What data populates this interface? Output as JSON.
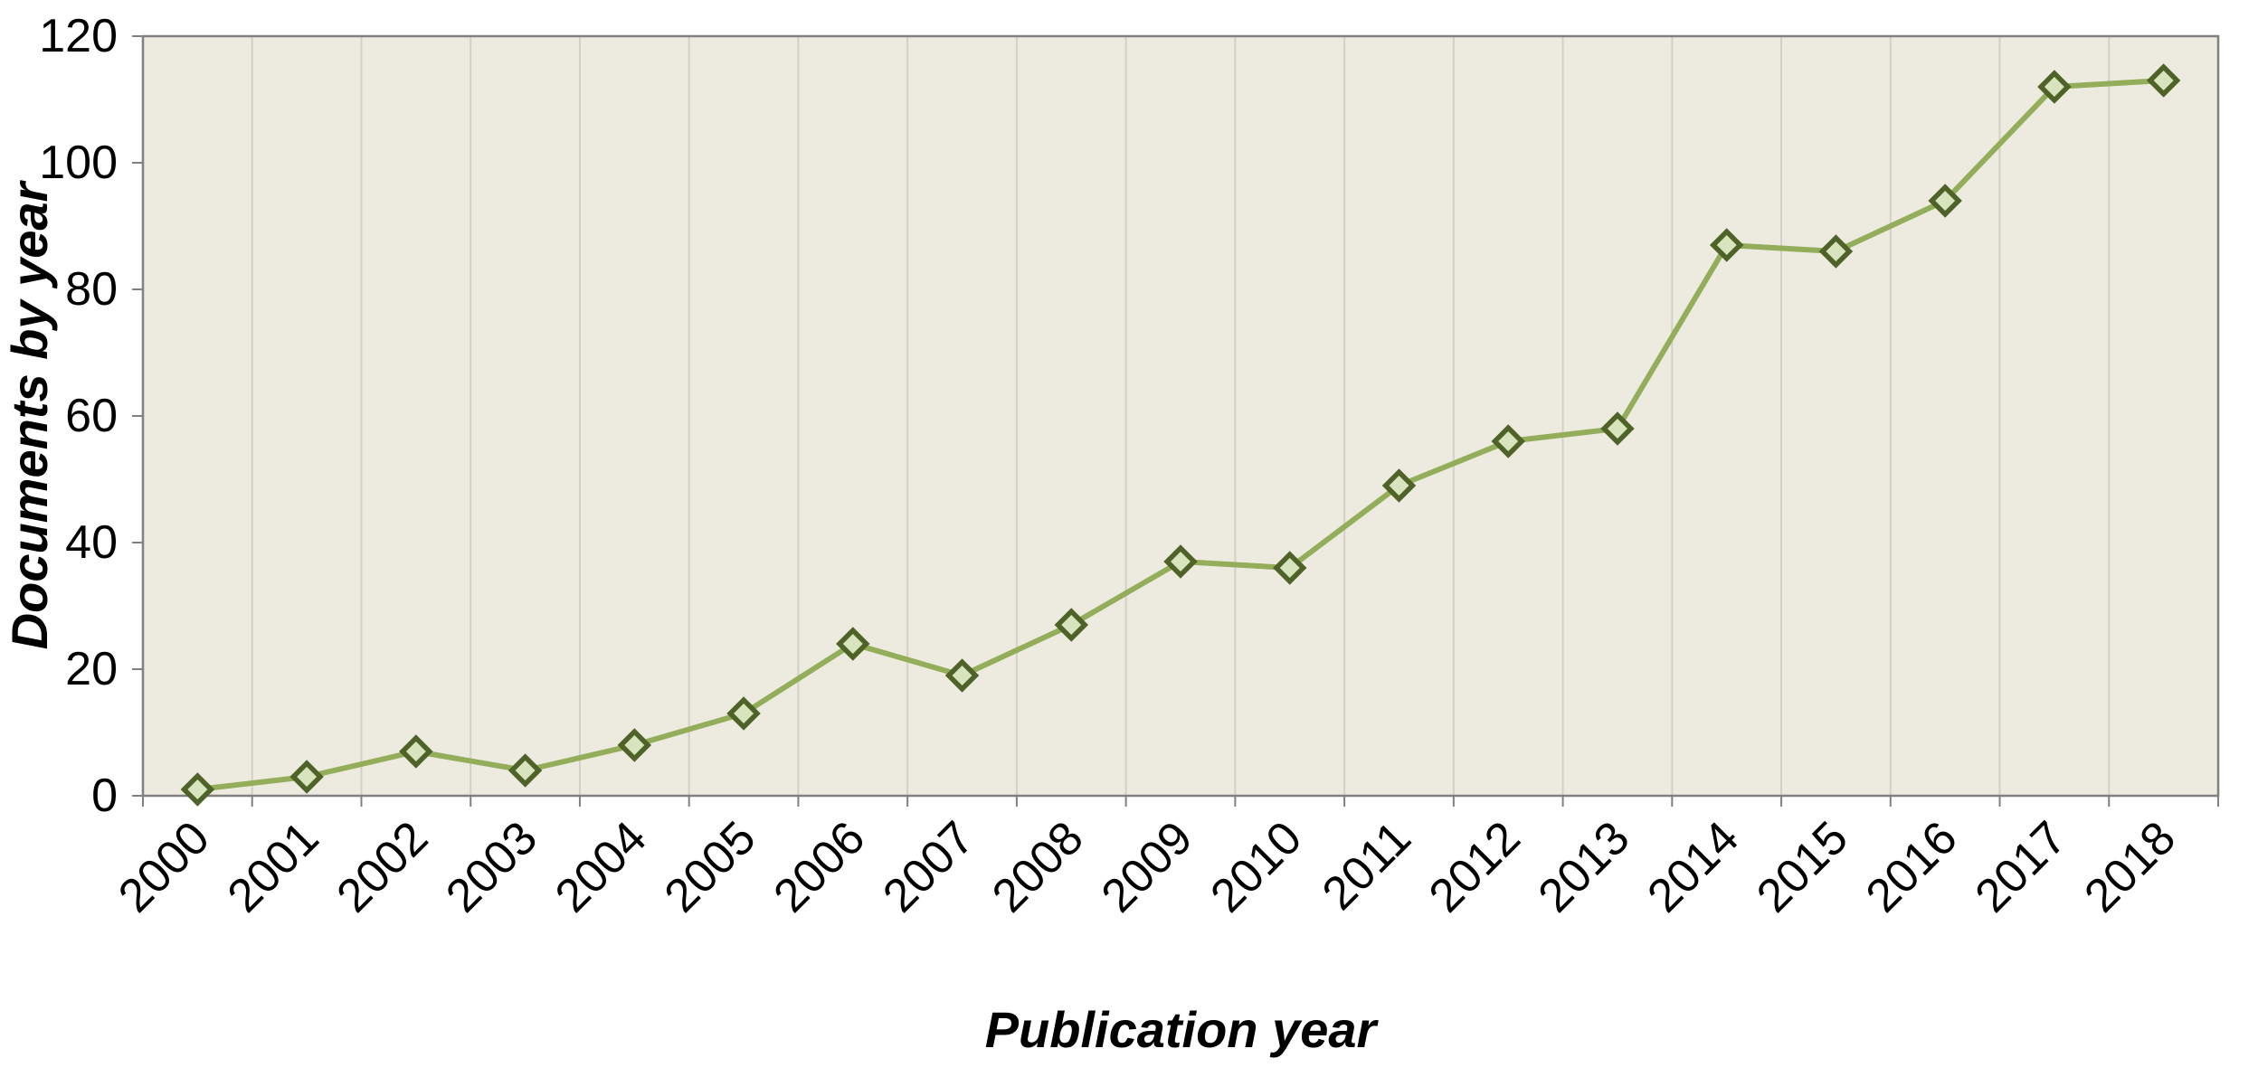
{
  "chart_data": {
    "type": "line",
    "categories": [
      "2000",
      "2001",
      "2002",
      "2003",
      "2004",
      "2005",
      "2006",
      "2007",
      "2008",
      "2009",
      "2010",
      "2011",
      "2012",
      "2013",
      "2014",
      "2015",
      "2016",
      "2017",
      "2018"
    ],
    "series": [
      {
        "name": "Documents by year",
        "values": [
          1,
          3,
          7,
          4,
          8,
          13,
          24,
          19,
          27,
          37,
          36,
          49,
          56,
          58,
          87,
          86,
          94,
          112,
          113
        ]
      }
    ],
    "title": "",
    "xlabel": "Publication year",
    "ylabel": "Documents by year",
    "ylim": [
      0,
      120
    ],
    "ytick_step": 20,
    "yticks": [
      0,
      20,
      40,
      60,
      80,
      100,
      120
    ],
    "grid": "vertical-only",
    "legend": "none",
    "marker": "diamond",
    "colors": {
      "line": "#94AD5A",
      "marker_fill": "#D7E4BD",
      "marker_stroke": "#4F6228",
      "plot_bg": "#EDEBE0",
      "gridline": "#D3D1C5",
      "axis": "#808080",
      "text": "#000000"
    }
  }
}
